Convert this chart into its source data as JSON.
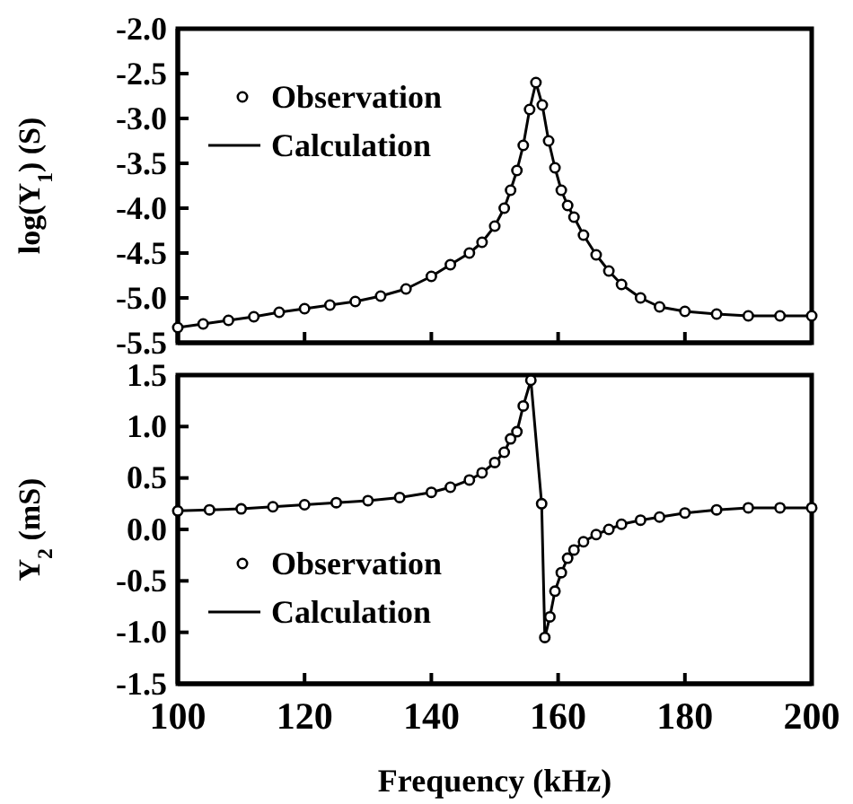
{
  "chart_data": [
    {
      "type": "scatter",
      "ylabel": "log(Y$_{1}$) (S)",
      "xlim": [
        100,
        200
      ],
      "xticks": [
        100,
        120,
        140,
        160,
        180,
        200
      ],
      "ylim": [
        -5.5,
        -2.0
      ],
      "yticks": [
        {
          "value": -2.0,
          "label": "-2.0"
        },
        {
          "value": -2.5,
          "label": "-2.5"
        },
        {
          "value": -3.0,
          "label": "-3.0"
        },
        {
          "value": -3.5,
          "label": "-3.5"
        },
        {
          "value": -4.0,
          "label": "-4.0"
        },
        {
          "value": -4.5,
          "label": "-4.5"
        },
        {
          "value": -5.0,
          "label": "-5.0"
        },
        {
          "value": -5.5,
          "label": "-5.5"
        }
      ],
      "tick_labels": "y",
      "legend": "top left",
      "grid": false,
      "x": [
        100,
        104,
        108,
        112,
        116,
        120,
        124,
        128,
        132,
        136,
        140,
        143,
        146,
        148,
        150,
        151.5,
        152.5,
        153.5,
        154.5,
        155.5,
        156.5,
        157.5,
        158.5,
        159.5,
        160.5,
        161.5,
        162.5,
        164,
        166,
        168,
        170,
        173,
        176,
        180,
        185,
        190,
        195,
        200
      ],
      "series": [
        {
          "name": "Observation",
          "marker": "circle",
          "color": "#000000",
          "values": [
            -5.33,
            -5.29,
            -5.25,
            -5.21,
            -5.16,
            -5.12,
            -5.08,
            -5.04,
            -4.98,
            -4.9,
            -4.76,
            -4.63,
            -4.5,
            -4.38,
            -4.2,
            -4.0,
            -3.8,
            -3.58,
            -3.3,
            -2.9,
            -2.6,
            -2.85,
            -3.25,
            -3.55,
            -3.8,
            -3.97,
            -4.1,
            -4.3,
            -4.52,
            -4.7,
            -4.85,
            -5.0,
            -5.1,
            -5.15,
            -5.18,
            -5.2,
            -5.2,
            -5.2
          ]
        },
        {
          "name": "Calculation",
          "type": "line",
          "color": "#000000",
          "values": [
            -5.33,
            -5.29,
            -5.25,
            -5.21,
            -5.16,
            -5.12,
            -5.08,
            -5.04,
            -4.98,
            -4.9,
            -4.76,
            -4.63,
            -4.5,
            -4.38,
            -4.2,
            -4.0,
            -3.8,
            -3.58,
            -3.3,
            -2.9,
            -2.6,
            -2.85,
            -3.25,
            -3.55,
            -3.8,
            -3.97,
            -4.1,
            -4.3,
            -4.52,
            -4.7,
            -4.85,
            -5.0,
            -5.1,
            -5.15,
            -5.18,
            -5.2,
            -5.2,
            -5.2
          ]
        }
      ]
    },
    {
      "type": "scatter",
      "ylabel": "Y$_{2}$ (mS)",
      "xlabel": "Frequency (kHz)",
      "xlim": [
        100,
        200
      ],
      "xticks": [
        100,
        120,
        140,
        160,
        180,
        200
      ],
      "ylim": [
        -1.5,
        1.5
      ],
      "yticks": [
        {
          "value": 1.5,
          "label": "1.5"
        },
        {
          "value": 1.0,
          "label": "1.0"
        },
        {
          "value": 0.5,
          "label": "0.5"
        },
        {
          "value": 0.0,
          "label": "0.0"
        },
        {
          "value": -0.5,
          "label": "-0.5"
        },
        {
          "value": -1.0,
          "label": "-1.0"
        },
        {
          "value": -1.5,
          "label": "-1.5"
        }
      ],
      "legend": "left",
      "grid": false,
      "x": [
        100,
        105,
        110,
        115,
        120,
        125,
        130,
        135,
        140,
        143,
        146,
        148,
        150,
        151.5,
        152.5,
        153.5,
        154.5,
        155.7,
        157.4,
        157.9,
        158.7,
        159.5,
        160.5,
        161.5,
        162.5,
        164,
        166,
        168,
        170,
        173,
        176,
        180,
        185,
        190,
        195,
        200
      ],
      "series": [
        {
          "name": "Observation",
          "marker": "circle",
          "color": "#000000",
          "values": [
            0.18,
            0.19,
            0.2,
            0.22,
            0.24,
            0.26,
            0.28,
            0.31,
            0.36,
            0.41,
            0.48,
            0.55,
            0.65,
            0.75,
            0.88,
            0.95,
            1.2,
            1.45,
            0.25,
            -1.05,
            -0.85,
            -0.6,
            -0.42,
            -0.28,
            -0.2,
            -0.12,
            -0.05,
            0.0,
            0.05,
            0.09,
            0.12,
            0.16,
            0.19,
            0.21,
            0.21,
            0.21
          ]
        },
        {
          "name": "Calculation",
          "type": "line",
          "color": "#000000",
          "values": [
            0.18,
            0.19,
            0.2,
            0.22,
            0.24,
            0.26,
            0.28,
            0.31,
            0.36,
            0.41,
            0.48,
            0.55,
            0.65,
            0.75,
            0.88,
            0.95,
            1.2,
            1.45,
            0.25,
            -1.05,
            -0.85,
            -0.6,
            -0.42,
            -0.28,
            -0.2,
            -0.12,
            -0.05,
            0.0,
            0.05,
            0.09,
            0.12,
            0.16,
            0.19,
            0.21,
            0.21,
            0.21
          ]
        }
      ]
    }
  ]
}
